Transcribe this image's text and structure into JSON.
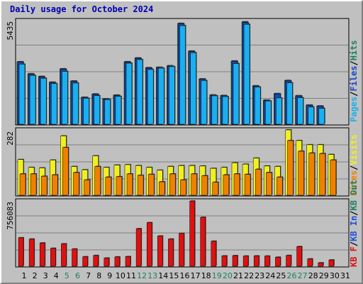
{
  "title": "Daily usage for October 2024",
  "colors": {
    "pages": "#1ab0f0",
    "files": "#1848c8",
    "hits": "#1a8060",
    "visits": "#f0f020",
    "sites": "#f08000",
    "kbin": "#2050e0",
    "kbout": "#208060",
    "kbf": "#e01010",
    "weekend": "#1a8060",
    "weekday": "#000000"
  },
  "chart_data": [
    {
      "type": "bar",
      "panel": "top",
      "y_max_label": "5435",
      "ylim": [
        0,
        5435
      ],
      "categories": [
        "1",
        "2",
        "3",
        "4",
        "5",
        "6",
        "7",
        "8",
        "9",
        "10",
        "11",
        "12",
        "13",
        "14",
        "15",
        "16",
        "17",
        "18",
        "19",
        "20",
        "21",
        "22",
        "23",
        "24",
        "25",
        "26",
        "27",
        "28",
        "29",
        "30",
        "31"
      ],
      "legend": [
        "Pages",
        "/",
        "Files",
        "/",
        "Hits"
      ],
      "series": [
        {
          "name": "Hits",
          "values": [
            3280,
            2650,
            2510,
            2210,
            2910,
            2270,
            1420,
            1590,
            1340,
            1530,
            3280,
            3480,
            2970,
            2990,
            3070,
            5290,
            3840,
            2380,
            1540,
            1510,
            3320,
            5370,
            2020,
            1270,
            1610,
            2300,
            1500,
            1010,
            960,
            0,
            0
          ]
        },
        {
          "name": "Files",
          "values": [
            3250,
            2620,
            2470,
            2180,
            2880,
            2240,
            1400,
            1570,
            1320,
            1500,
            3250,
            3450,
            2940,
            2960,
            3040,
            5260,
            3810,
            2360,
            1520,
            1490,
            3290,
            5330,
            1990,
            1250,
            1590,
            2270,
            1480,
            990,
            940,
            0,
            0
          ]
        },
        {
          "name": "Pages",
          "values": [
            3150,
            2560,
            2410,
            2130,
            2770,
            2160,
            1360,
            1500,
            1290,
            1460,
            3200,
            3390,
            2870,
            2940,
            3020,
            5170,
            3750,
            2290,
            1490,
            1450,
            3180,
            5240,
            1950,
            1220,
            1380,
            2170,
            1390,
            900,
            830,
            0,
            0
          ]
        }
      ]
    },
    {
      "type": "bar",
      "panel": "middle",
      "y_max_label": "282",
      "ylim": [
        0,
        282
      ],
      "categories": [
        "1",
        "2",
        "3",
        "4",
        "5",
        "6",
        "7",
        "8",
        "9",
        "10",
        "11",
        "12",
        "13",
        "14",
        "15",
        "16",
        "17",
        "18",
        "19",
        "20",
        "21",
        "22",
        "23",
        "24",
        "25",
        "26",
        "27",
        "28",
        "29",
        "30",
        "31"
      ],
      "legend": [
        "Visits",
        "/",
        "Sites"
      ],
      "series": [
        {
          "name": "Visits",
          "values": [
            154,
            120,
            118,
            152,
            256,
            124,
            110,
            170,
            120,
            130,
            132,
            128,
            120,
            108,
            124,
            128,
            128,
            126,
            116,
            120,
            140,
            134,
            160,
            126,
            124,
            282,
            236,
            218,
            218,
            176,
            0
          ]
        },
        {
          "name": "Sites",
          "values": [
            92,
            92,
            82,
            88,
            206,
            98,
            66,
            124,
            78,
            80,
            92,
            86,
            90,
            58,
            92,
            66,
            92,
            84,
            56,
            88,
            92,
            90,
            112,
            98,
            78,
            236,
            190,
            182,
            180,
            152,
            0
          ]
        }
      ]
    },
    {
      "type": "bar",
      "panel": "bottom",
      "y_max_label": "756083",
      "ylim": [
        0,
        756083
      ],
      "categories": [
        "1",
        "2",
        "3",
        "4",
        "5",
        "6",
        "7",
        "8",
        "9",
        "10",
        "11",
        "12",
        "13",
        "14",
        "15",
        "16",
        "17",
        "18",
        "19",
        "20",
        "21",
        "22",
        "23",
        "24",
        "25",
        "26",
        "27",
        "28",
        "29",
        "30",
        "31"
      ],
      "legend": [
        "KB F",
        "/",
        "KB In",
        "/",
        "KB Out"
      ],
      "series": [
        {
          "name": "KB F",
          "values": [
            330000,
            315000,
            270000,
            208000,
            260000,
            200000,
            110000,
            125000,
            95000,
            108000,
            112000,
            435000,
            505000,
            350000,
            315000,
            380000,
            755000,
            567000,
            290000,
            120000,
            123000,
            118000,
            120000,
            118000,
            105000,
            125000,
            228000,
            85000,
            40000,
            73000,
            0
          ]
        }
      ]
    }
  ],
  "day_labels": [
    "1",
    "2",
    "3",
    "4",
    "5",
    "6",
    "7",
    "8",
    "9",
    "10",
    "11",
    "12",
    "13",
    "14",
    "15",
    "16",
    "17",
    "18",
    "19",
    "20",
    "21",
    "22",
    "23",
    "24",
    "25",
    "26",
    "27",
    "28",
    "29",
    "30",
    "31"
  ],
  "weekend_days": [
    "5",
    "6",
    "12",
    "13",
    "19",
    "20",
    "26",
    "27"
  ]
}
